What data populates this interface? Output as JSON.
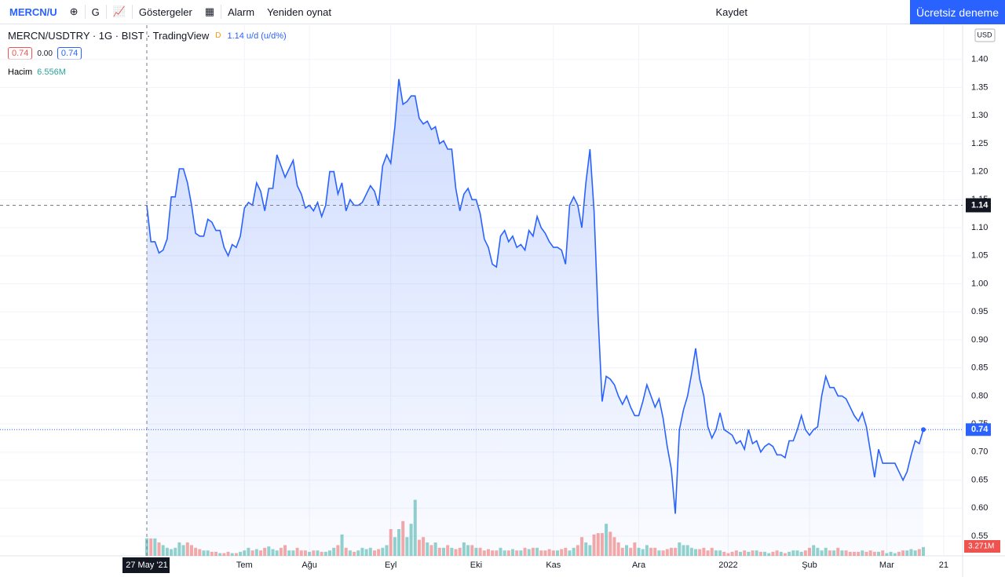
{
  "toolbar": {
    "symbol": "MERCN/U",
    "interval": "G",
    "indicators": "Göstergeler",
    "alarm": "Alarm",
    "replay": "Yeniden oynat",
    "save": "Kaydet",
    "trial": "Ücretsiz deneme"
  },
  "header": {
    "title": "MERCN/USDTRY · 1G · BIST · TradingView",
    "status": "D",
    "last": "1.14 u/d (u/d%)",
    "o": "0.74",
    "change": "0.00",
    "c": "0.74",
    "volume_name": "Hacim",
    "volume_value": "6.556M"
  },
  "currency": "USD",
  "chart_data": {
    "type": "area",
    "color": "#2962ff",
    "up_color": "#26a69a",
    "down_color": "#ef5350",
    "values": [
      1.14,
      1.075,
      1.075,
      1.055,
      1.06,
      1.08,
      1.155,
      1.155,
      1.205,
      1.205,
      1.18,
      1.14,
      1.09,
      1.085,
      1.085,
      1.115,
      1.11,
      1.095,
      1.095,
      1.065,
      1.05,
      1.07,
      1.065,
      1.085,
      1.135,
      1.145,
      1.14,
      1.18,
      1.165,
      1.13,
      1.17,
      1.17,
      1.23,
      1.21,
      1.19,
      1.205,
      1.22,
      1.175,
      1.16,
      1.135,
      1.14,
      1.13,
      1.145,
      1.12,
      1.14,
      1.2,
      1.2,
      1.16,
      1.18,
      1.13,
      1.15,
      1.14,
      1.14,
      1.145,
      1.16,
      1.175,
      1.165,
      1.14,
      1.21,
      1.23,
      1.215,
      1.28,
      1.365,
      1.32,
      1.325,
      1.335,
      1.335,
      1.295,
      1.285,
      1.29,
      1.275,
      1.28,
      1.25,
      1.255,
      1.24,
      1.24,
      1.17,
      1.13,
      1.16,
      1.17,
      1.15,
      1.15,
      1.125,
      1.08,
      1.065,
      1.035,
      1.03,
      1.085,
      1.095,
      1.075,
      1.085,
      1.065,
      1.07,
      1.06,
      1.095,
      1.085,
      1.12,
      1.1,
      1.09,
      1.075,
      1.065,
      1.065,
      1.06,
      1.035,
      1.14,
      1.155,
      1.14,
      1.1,
      1.18,
      1.24,
      1.13,
      0.94,
      0.79,
      0.835,
      0.83,
      0.82,
      0.8,
      0.785,
      0.8,
      0.78,
      0.765,
      0.765,
      0.79,
      0.82,
      0.8,
      0.78,
      0.795,
      0.76,
      0.71,
      0.67,
      0.59,
      0.74,
      0.775,
      0.8,
      0.84,
      0.885,
      0.83,
      0.8,
      0.745,
      0.725,
      0.74,
      0.77,
      0.74,
      0.735,
      0.73,
      0.715,
      0.72,
      0.705,
      0.74,
      0.715,
      0.72,
      0.7,
      0.71,
      0.715,
      0.71,
      0.695,
      0.695,
      0.69,
      0.72,
      0.72,
      0.74,
      0.765,
      0.74,
      0.73,
      0.74,
      0.745,
      0.8,
      0.835,
      0.815,
      0.815,
      0.8,
      0.8,
      0.795,
      0.78,
      0.765,
      0.755,
      0.77,
      0.745,
      0.7,
      0.655,
      0.705,
      0.68,
      0.68,
      0.68,
      0.68,
      0.665,
      0.65,
      0.665,
      0.695,
      0.72,
      0.715,
      0.74
    ],
    "volume": [
      6.556,
      6.5,
      6.5,
      5,
      4,
      3,
      2.5,
      3,
      5,
      4,
      5,
      4,
      3,
      2.5,
      2,
      2,
      1.5,
      1.5,
      1,
      1,
      1.5,
      1,
      1,
      1.5,
      2,
      3,
      2,
      2.5,
      2,
      3,
      3.5,
      2.5,
      2,
      3,
      4,
      2,
      2,
      3,
      2,
      2,
      1.5,
      2,
      2,
      1.5,
      1.5,
      2,
      3,
      4,
      8,
      3,
      2,
      1.5,
      2,
      3,
      2.5,
      3,
      2,
      2.5,
      3,
      4,
      10,
      7,
      10,
      13,
      7,
      12,
      21,
      6,
      7,
      5,
      4,
      5,
      3,
      3,
      4,
      3,
      2.5,
      3,
      5,
      4,
      4,
      3,
      3,
      2,
      2.5,
      2,
      2,
      3,
      2,
      2,
      2.5,
      2,
      2,
      3,
      2.5,
      3,
      3,
      2,
      2,
      2.5,
      2,
      2,
      2.5,
      3,
      2,
      3,
      4,
      7,
      5,
      4,
      8,
      8.5,
      8.5,
      12,
      9,
      7,
      5,
      3,
      4,
      3,
      5,
      3,
      2.5,
      4,
      3,
      3,
      2,
      2,
      2.5,
      3,
      3,
      5,
      4,
      4,
      3,
      2.5,
      2.5,
      3,
      2,
      3,
      2,
      2,
      1.5,
      1,
      1.5,
      2,
      1.5,
      2,
      1.5,
      2,
      2,
      1.5,
      1.5,
      1,
      1.5,
      2,
      1.5,
      1,
      1.5,
      2,
      2,
      1.5,
      2,
      3,
      4,
      3,
      2,
      3,
      2,
      2,
      3,
      2,
      2,
      1.5,
      1.5,
      1.5,
      2,
      1.5,
      2,
      1.5,
      1.5,
      2,
      1,
      1.5,
      1,
      1.5,
      2,
      2,
      2.5,
      2,
      2.5,
      3.271
    ],
    "last_volume_label": "3.271M",
    "crosshair_label": "1.14",
    "last_label": "0.74",
    "xlim": [
      0,
      191
    ],
    "xticks": [
      {
        "value": 0,
        "label": "27 May '21"
      },
      {
        "value": 24,
        "label": "Tem"
      },
      {
        "value": 40,
        "label": "Ağu"
      },
      {
        "value": 60,
        "label": "Eyl"
      },
      {
        "value": 81,
        "label": "Eki"
      },
      {
        "value": 100,
        "label": "Kas"
      },
      {
        "value": 121,
        "label": "Ara"
      },
      {
        "value": 143,
        "label": "2022"
      },
      {
        "value": 163,
        "label": "Şub"
      },
      {
        "value": 182,
        "label": "Mar"
      },
      {
        "value": 196,
        "label": "21"
      }
    ],
    "ylim": [
      0.515,
      1.45
    ],
    "yticks": [
      0.55,
      {
        "value": 0.6,
        "label": "0.60"
      },
      0.65,
      {
        "value": 0.7,
        "label": "0.70"
      },
      0.75,
      {
        "value": 0.8,
        "label": "0.80"
      },
      0.85,
      {
        "value": 0.9,
        "label": "0.90"
      },
      0.95,
      {
        "value": 1.0,
        "label": "1.00"
      },
      1.05,
      {
        "value": 1.1,
        "label": "1.10"
      },
      1.15,
      {
        "value": 1.2,
        "label": "1.20"
      },
      1.25,
      {
        "value": 1.3,
        "label": "1.30"
      },
      1.35,
      {
        "value": 1.4,
        "label": "1.40"
      }
    ],
    "grid": true
  }
}
